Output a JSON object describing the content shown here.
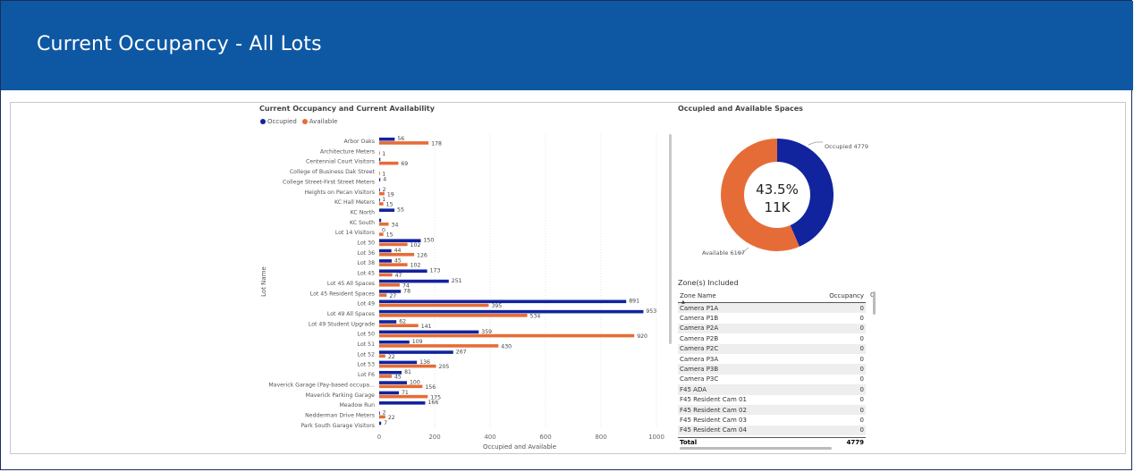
{
  "header": {
    "title": "Current Occupancy - All Lots"
  },
  "bar_chart": {
    "title": "Current Occupancy and Current Availability",
    "legend": [
      "Occupied",
      "Available"
    ],
    "colors": {
      "occupied": "#12239e",
      "available": "#e66c37"
    },
    "ylabel": "Lot Name",
    "xlabel": "Occupied and Available"
  },
  "chart_data": {
    "type": "bar",
    "orientation": "horizontal",
    "title": "Current Occupancy and Current Availability",
    "xlabel": "Occupied and Available",
    "ylabel": "Lot Name",
    "xlim": [
      0,
      1000
    ],
    "xticks": [
      "0",
      "200",
      "400",
      "600",
      "800",
      "1000"
    ],
    "categories": [
      "Arbor Oaks",
      "Architecture Meters",
      "Centennial Court Visitors",
      "College of Business Dak Street",
      "College Street-First Street Meters",
      "Heights on Pecan Visitors",
      "KC Hall Meters",
      "KC North",
      "KC South",
      "Lot 14 Visitors",
      "Lot 30",
      "Lot 36",
      "Lot 38",
      "Lot 45",
      "Lot 45 All Spaces",
      "Lot 45 Resident Spaces",
      "Lot 49",
      "Lot 49 All Spaces",
      "Lot 49 Student Upgrade",
      "Lot 50",
      "Lot 51",
      "Lot 52",
      "Lot 53",
      "Lot F6",
      "Maverick Garage (Pay-based occupa...",
      "Maverick Parking Garage",
      "Meadow Run",
      "Nedderman Drive Meters",
      "Park South Garage Visitors"
    ],
    "series": [
      {
        "name": "Occupied",
        "values": [
          56,
          0,
          4,
          0,
          4,
          2,
          1,
          55,
          7,
          0,
          150,
          44,
          45,
          173,
          251,
          78,
          891,
          953,
          62,
          359,
          109,
          267,
          136,
          81,
          100,
          71,
          166,
          2,
          7
        ]
      },
      {
        "name": "Available",
        "values": [
          178,
          1,
          69,
          1,
          0,
          19,
          15,
          0,
          34,
          15,
          102,
          126,
          102,
          47,
          74,
          27,
          395,
          534,
          141,
          920,
          430,
          22,
          205,
          45,
          156,
          175,
          0,
          22,
          0
        ]
      }
    ],
    "occ_labels": [
      "56",
      "",
      "",
      "",
      "4",
      "2",
      "1",
      "55",
      "",
      "0",
      "150",
      "44",
      "45",
      "173",
      "251",
      "78",
      "891",
      "953",
      "62",
      "359",
      "109",
      "267",
      "136",
      "81",
      "100",
      "71",
      "166",
      "2",
      "7"
    ],
    "avail_labels": [
      "178",
      "1",
      "69",
      "1",
      "",
      "19",
      "15",
      "",
      "34",
      "15",
      "102",
      "126",
      "102",
      "47",
      "74",
      "27",
      "395",
      "534",
      "141",
      "920",
      "430",
      "22",
      "205",
      "45",
      "156",
      "175",
      "",
      "22",
      ""
    ]
  },
  "donut": {
    "title": "Occupied and Available Spaces",
    "center_pct": "43.5%",
    "center_total": "11K",
    "occupied_label": "Occupied 4779",
    "available_label": "Available 6197",
    "occupied": 4779,
    "available": 6197
  },
  "zones": {
    "title": "Zone(s) Included",
    "col_name": "Zone Name",
    "col_occ": "Occupancy",
    "col_cut": "O",
    "rows": [
      {
        "name": "Camera P1A",
        "occ": "0"
      },
      {
        "name": "Camera P1B",
        "occ": "0"
      },
      {
        "name": "Camera P2A",
        "occ": "0"
      },
      {
        "name": "Camera P2B",
        "occ": "0"
      },
      {
        "name": "Camera P2C",
        "occ": "0"
      },
      {
        "name": "Camera P3A",
        "occ": "0"
      },
      {
        "name": "Camera P3B",
        "occ": "0"
      },
      {
        "name": "Camera P3C",
        "occ": "0"
      },
      {
        "name": "F45 ADA",
        "occ": "0"
      },
      {
        "name": "F45 Resident Cam 01",
        "occ": "0"
      },
      {
        "name": "F45 Resident Cam 02",
        "occ": "0"
      },
      {
        "name": "F45 Resident Cam 03",
        "occ": "0"
      },
      {
        "name": "F45 Resident Cam 04",
        "occ": "0"
      }
    ],
    "total_label": "Total",
    "total_value": "4779"
  }
}
